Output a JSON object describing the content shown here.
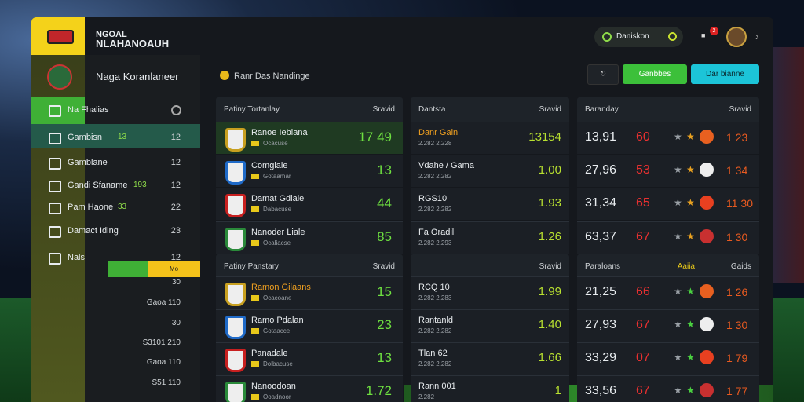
{
  "header": {
    "brand_top": "NGOAL",
    "brand_bottom": "NLAHANOAUH",
    "search": "Daniskon",
    "badge": "2"
  },
  "subheader": {
    "title": "Naga Koranlaneer",
    "section": "Ranr Das Nandinge",
    "buttons": [
      "Ganbbes",
      "Dar bianne"
    ]
  },
  "nav": [
    {
      "label": "Na Fhalias"
    },
    {
      "label": "Gambisn",
      "tag": "13",
      "value": "12"
    },
    {
      "label": "Gamblane",
      "value": "12"
    },
    {
      "label": "Gandi Sfaname",
      "tag": "193",
      "value": "12"
    },
    {
      "label": "Pam Haone",
      "tag": "33",
      "value": "22"
    },
    {
      "label": "Damact Iding",
      "value": "23"
    },
    {
      "label": "Nals",
      "value": "12"
    }
  ],
  "side_bar_label": "Mo",
  "side_list": [
    "30",
    "Gaoa 110",
    "30",
    "S3101 210",
    "Gaoa 110",
    "S51 110"
  ],
  "teams": {
    "header": [
      "Patiny Tortanlay",
      "Sravid"
    ],
    "rows": [
      {
        "name": "Ranoe Iebiana",
        "sub": "Ocacuse",
        "value": "17 49"
      },
      {
        "name": "Comgiaie",
        "sub": "Gotaamar",
        "value": "13"
      },
      {
        "name": "Damat Gdiale",
        "sub": "Dabacuse",
        "value": "44"
      },
      {
        "name": "Nanoder Liale",
        "sub": "Ocaliacse",
        "value": "85"
      }
    ],
    "header2": [
      "Patiny Panstary",
      "Sravid"
    ],
    "rows2": [
      {
        "name": "Ramon Gilaans",
        "sub": "Ocacoane",
        "value": "15"
      },
      {
        "name": "Ramo Pdalan",
        "sub": "Gotaacce",
        "value": "23"
      },
      {
        "name": "Panadale",
        "sub": "Dolbacuse",
        "value": "13"
      },
      {
        "name": "Nanoodoan",
        "sub": "Ooadnoor",
        "value": "1.72"
      }
    ]
  },
  "matches": {
    "header": [
      "Dantsta",
      "Sravid"
    ],
    "rows": [
      {
        "name": "Danr Gain",
        "sub": "2.282 2.228",
        "value": "13154"
      },
      {
        "name": "Vdahe / Gama",
        "sub": "2.282 2.282",
        "value": "1.00"
      },
      {
        "name": "RGS10",
        "sub": "2.282 2.282",
        "value": "1.93"
      },
      {
        "name": "Fa Oradil",
        "sub": "2.282 2.293",
        "value": "1.26"
      }
    ],
    "header2": [
      "Sravid"
    ],
    "rows2": [
      {
        "name": "RCQ 10",
        "sub": "2.282 2.283",
        "value": "1.99"
      },
      {
        "name": "Rantanld",
        "sub": "2.282 2.282",
        "value": "1.40"
      },
      {
        "name": "Tlan 62",
        "sub": "2.282 2.282",
        "value": "1.66"
      },
      {
        "name": "Rann 001",
        "sub": "2.282",
        "value": "1"
      }
    ]
  },
  "odds": {
    "header": [
      "Baranday",
      "Sravid"
    ],
    "rows": [
      {
        "a": "13,91",
        "b": "60",
        "c": "1 23"
      },
      {
        "a": "27,96",
        "b": "53",
        "c": "1 34"
      },
      {
        "a": "31,34",
        "b": "65",
        "c": "11 30"
      },
      {
        "a": "63,37",
        "b": "67",
        "c": "1 30"
      }
    ],
    "header2": [
      "Paraloans",
      "Aaiia",
      "Gaids"
    ],
    "rows2": [
      {
        "a": "21,25",
        "b": "66",
        "c": "1 26"
      },
      {
        "a": "27,93",
        "b": "67",
        "c": "1 30"
      },
      {
        "a": "33,29",
        "b": "07",
        "c": "1 79"
      },
      {
        "a": "33,56",
        "b": "67",
        "c": "1 77"
      }
    ]
  }
}
